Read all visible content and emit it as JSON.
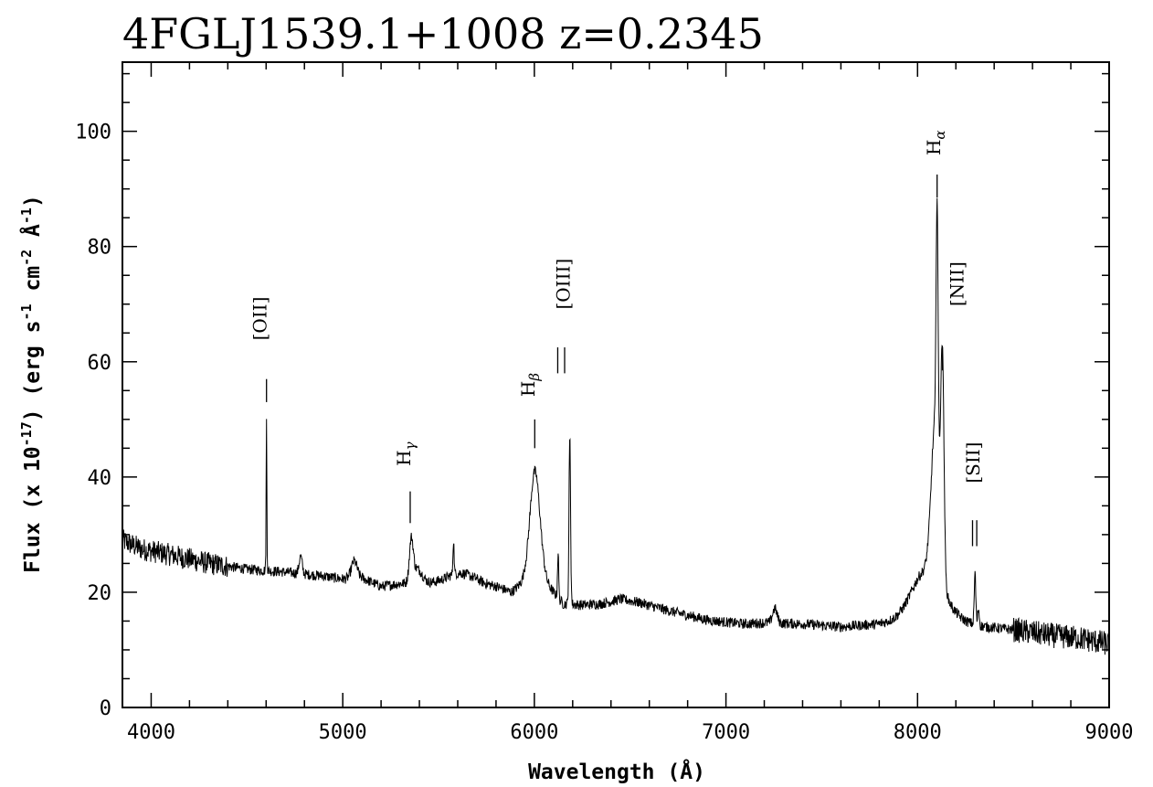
{
  "chart_data": {
    "type": "line",
    "title": "4FGLJ1539.1+1008 z=0.2345",
    "xlabel": "Wavelength (Å)",
    "ylabel_parts": [
      "Flux (x 10",
      "-17",
      ") (erg s",
      "-1",
      " cm",
      "-2",
      " Å",
      "-1",
      ")"
    ],
    "xlim": [
      3850,
      9000
    ],
    "ylim": [
      0,
      112
    ],
    "x_ticks": [
      4000,
      5000,
      6000,
      7000,
      8000,
      9000
    ],
    "y_ticks": [
      0,
      20,
      40,
      60,
      80,
      100
    ],
    "line_color": "#000000",
    "continuum": [
      [
        3850,
        29
      ],
      [
        3950,
        27.5
      ],
      [
        4100,
        26.5
      ],
      [
        4300,
        25
      ],
      [
        4500,
        24
      ],
      [
        4700,
        23.5
      ],
      [
        4900,
        22.8
      ],
      [
        5000,
        22.3
      ],
      [
        5100,
        22.5
      ],
      [
        5200,
        21
      ],
      [
        5300,
        21.5
      ],
      [
        5450,
        21.5
      ],
      [
        5550,
        21.2
      ],
      [
        5700,
        21.5
      ],
      [
        5800,
        21
      ],
      [
        5880,
        20
      ],
      [
        5950,
        22
      ],
      [
        6050,
        22
      ],
      [
        6150,
        18
      ],
      [
        6250,
        17.8
      ],
      [
        6350,
        18
      ],
      [
        6450,
        18.8
      ],
      [
        6550,
        18.2
      ],
      [
        6700,
        16.8
      ],
      [
        6800,
        16
      ],
      [
        6900,
        15.2
      ],
      [
        7000,
        14.8
      ],
      [
        7100,
        14.5
      ],
      [
        7200,
        14.7
      ],
      [
        7400,
        14.5
      ],
      [
        7600,
        14
      ],
      [
        7800,
        14.5
      ],
      [
        7900,
        15
      ],
      [
        8000,
        16
      ],
      [
        8200,
        15
      ],
      [
        8350,
        14
      ],
      [
        8500,
        13.5
      ],
      [
        8700,
        12.5
      ],
      [
        8850,
        12
      ],
      [
        9000,
        11
      ]
    ],
    "emission_features": [
      {
        "center": 4602,
        "width": 2,
        "peak": 26
      },
      {
        "center": 4780,
        "width": 8,
        "peak": 3
      },
      {
        "center": 5060,
        "width": 15,
        "peak": 3
      },
      {
        "center": 5358,
        "width": 10,
        "peak": 7
      },
      {
        "center": 5390,
        "width": 25,
        "peak": 2.5
      },
      {
        "center": 5578,
        "width": 3,
        "peak": 6
      },
      {
        "center": 5605,
        "width": 70,
        "peak": 2
      },
      {
        "center": 6003,
        "width": 26,
        "peak": 19
      },
      {
        "center": 6124,
        "width": 3,
        "peak": 8
      },
      {
        "center": 6185,
        "width": 4,
        "peak": 29
      },
      {
        "center": 7255,
        "width": 12,
        "peak": 2.5
      },
      {
        "center": 8095,
        "width": 22,
        "peak": 28
      },
      {
        "center": 8102,
        "width": 5,
        "peak": 40
      },
      {
        "center": 8130,
        "width": 8,
        "peak": 35
      },
      {
        "center": 8055,
        "width": 80,
        "peak": 8
      },
      {
        "center": 8300,
        "width": 4,
        "peak": 9
      },
      {
        "center": 8318,
        "width": 4,
        "peak": 3
      }
    ],
    "noise_amplitude": 0.9,
    "line_markers": [
      {
        "x": 4602,
        "y_from": 53,
        "y_to": 57,
        "double": false
      },
      {
        "x": 5352,
        "y_from": 32,
        "y_to": 37.5,
        "double": false
      },
      {
        "x": 6002,
        "y_from": 45,
        "y_to": 50,
        "double": false
      },
      {
        "x": 6140,
        "y_from": 58,
        "y_to": 62.5,
        "double": true,
        "gap": 36
      },
      {
        "x": 8102,
        "y_from": 88.5,
        "y_to": 92.5,
        "double": false
      },
      {
        "x": 8130,
        "y_from": 58.5,
        "y_to": 62.5,
        "double": false
      },
      {
        "x": 8298,
        "y_from": 28,
        "y_to": 32.5,
        "double": true,
        "gap": 22
      }
    ],
    "annotations": [
      {
        "text": "[OII]",
        "sub": "",
        "x": 4602,
        "y": 67.5
      },
      {
        "text": "H",
        "sub": "γ",
        "x": 5352,
        "y": 44
      },
      {
        "text": "H",
        "sub": "β",
        "x": 6000,
        "y": 56
      },
      {
        "text": "[OIII]",
        "sub": "",
        "x": 6183,
        "y": 73.5
      },
      {
        "text": "H",
        "sub": "α",
        "x": 8118,
        "y": 98
      },
      {
        "text": "[NII]",
        "sub": "",
        "x": 8240,
        "y": 73.5
      },
      {
        "text": "[SII]",
        "sub": "",
        "x": 8322,
        "y": 42.5
      }
    ]
  }
}
